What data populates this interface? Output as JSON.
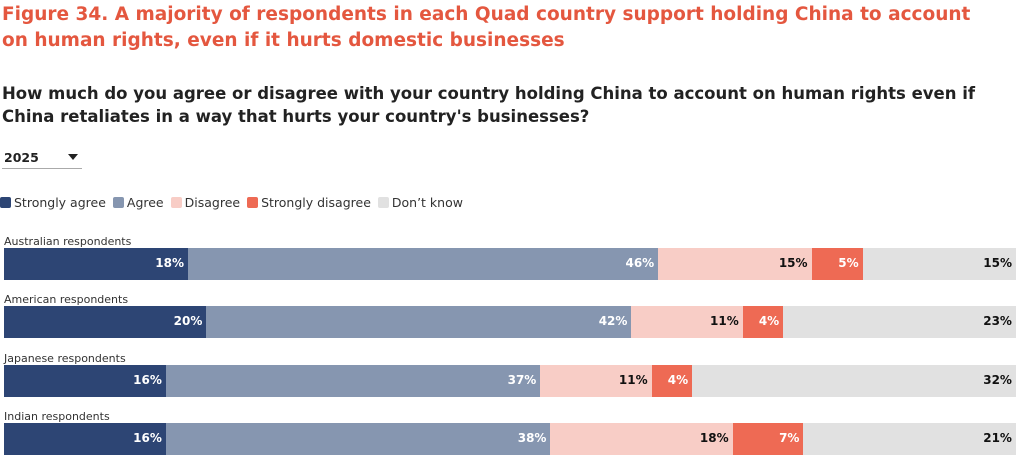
{
  "header": {
    "title": "Figure 34. A majority of respondents in each Quad country support holding China to account on human rights, even if it hurts domestic businesses",
    "question": "How much do you agree or disagree with your country holding China to account on human rights even if China retaliates in a way that hurts your country's businesses?"
  },
  "filter": {
    "year": "2025"
  },
  "colors": {
    "Strongly agree": "#2d4574",
    "Agree": "#8696b0",
    "Disagree": "#f8cdc6",
    "Strongly disagree": "#ee6a54",
    "Don't know": "#e1e1e1"
  },
  "label_colors": {
    "Strongly agree": "#ffffff",
    "Agree": "#ffffff",
    "Disagree": "#111111",
    "Strongly disagree": "#ffffff",
    "Don't know": "#111111"
  },
  "chart_data": {
    "type": "bar",
    "orientation": "horizontal-stacked-100",
    "title": "Figure 34. A majority of respondents in each Quad country support holding China to account on human rights, even if it hurts domestic businesses",
    "subtitle": "How much do you agree or disagree with your country holding China to account on human rights even if China retaliates in a way that hurts your country's businesses?",
    "legend_position": "top-left",
    "categories": [
      "Australian respondents",
      "American respondents",
      "Japanese respondents",
      "Indian respondents"
    ],
    "series": [
      {
        "name": "Strongly agree",
        "values": [
          18,
          20,
          16,
          16
        ]
      },
      {
        "name": "Agree",
        "values": [
          46,
          42,
          37,
          38
        ]
      },
      {
        "name": "Disagree",
        "values": [
          15,
          11,
          11,
          18
        ]
      },
      {
        "name": "Strongly disagree",
        "values": [
          5,
          4,
          4,
          7
        ]
      },
      {
        "name": "Don’t know",
        "values": [
          15,
          23,
          32,
          21
        ]
      }
    ],
    "value_suffix": "%",
    "xlim": [
      0,
      100
    ]
  }
}
